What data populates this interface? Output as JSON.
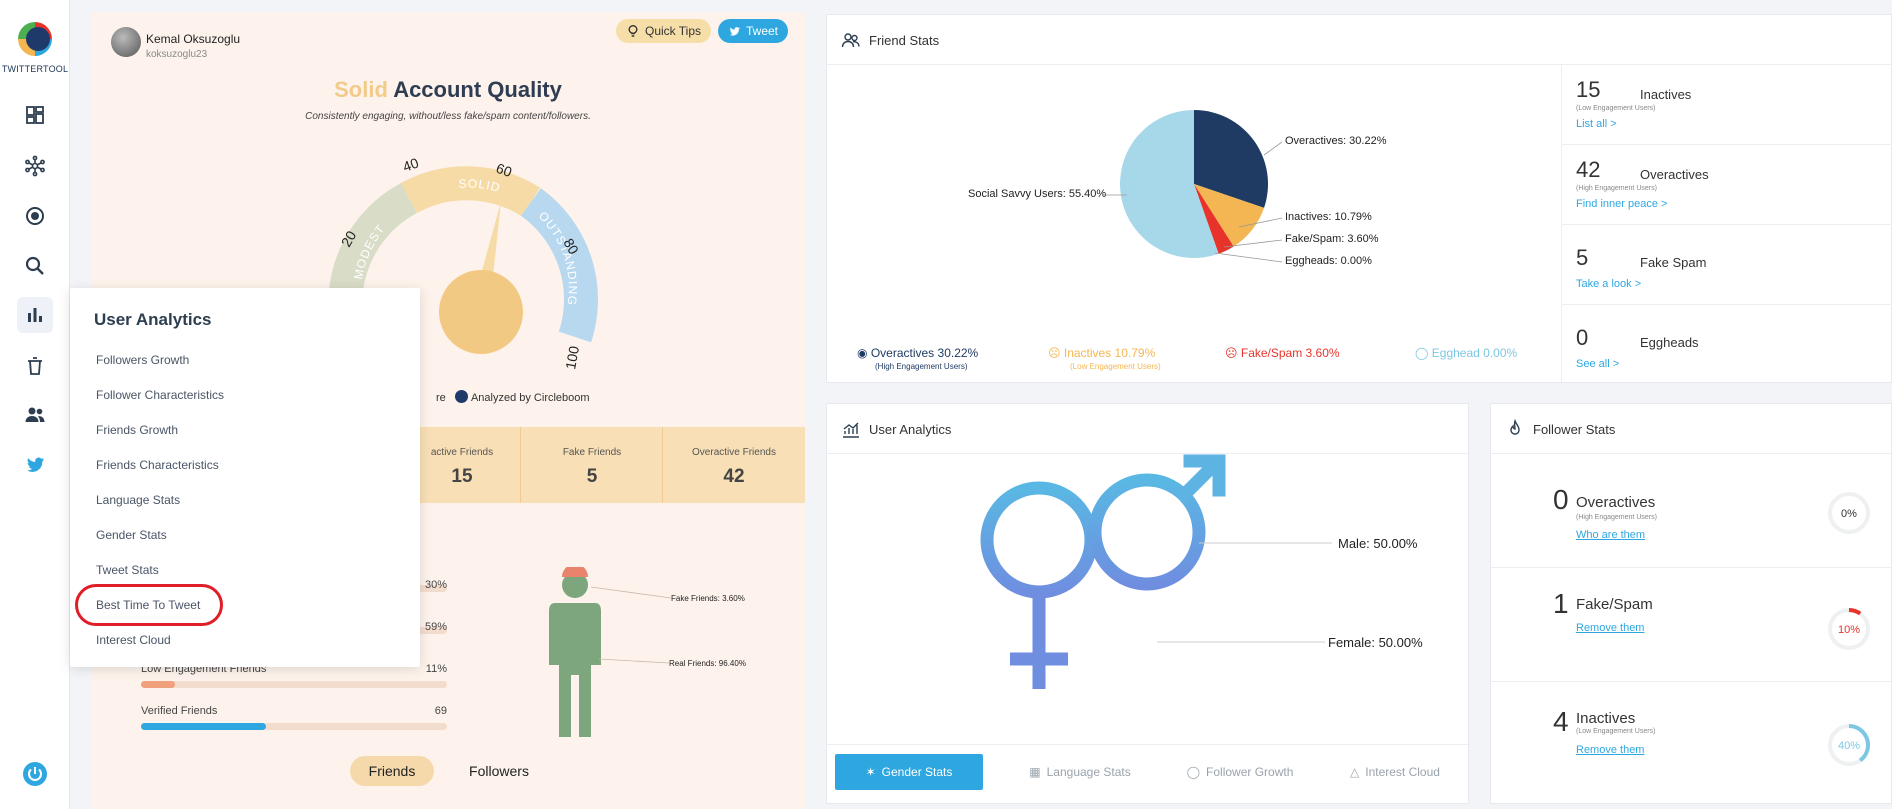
{
  "brand": {
    "name": "TWITTERTOOL"
  },
  "nav": {
    "icons": [
      "dashboard-icon",
      "network-icon",
      "target-icon",
      "search-icon",
      "bar-chart-icon",
      "trash-icon",
      "users-icon",
      "twitter-bird-icon"
    ],
    "power": "power-icon"
  },
  "profile": {
    "name": "Kemal Oksuzoglu",
    "handle": "koksuzoglu23"
  },
  "actions": {
    "quick_tips": "Quick Tips",
    "tweet": "Tweet"
  },
  "quality": {
    "level": "Solid",
    "title_rest": "Account Quality",
    "subtitle": "Consistently engaging, without/less fake/spam content/followers.",
    "score": "60",
    "gauge_ticks": [
      "20",
      "40",
      "60",
      "80",
      "100"
    ],
    "gauge_bands": [
      "MODEST",
      "SOLID",
      "OUTSTANDING"
    ],
    "analyzed_prefix": "re",
    "analyzed_by": "Analyzed by Circleboom"
  },
  "score_stats": [
    {
      "label": "active Friends",
      "value": "15"
    },
    {
      "label": "Fake Friends",
      "value": "5"
    },
    {
      "label": "Overactive Friends",
      "value": "42"
    }
  ],
  "bars": [
    {
      "label": "",
      "value": "30%",
      "fill": 0.3,
      "color": "#f4c77d"
    },
    {
      "label": "",
      "value": "59%",
      "fill": 0.59,
      "color": "#9dd3e8"
    },
    {
      "label": "Low Engagement Friends",
      "value": "11%",
      "fill": 0.11,
      "color": "#f0a07a"
    },
    {
      "label": "Verified Friends",
      "value": "69",
      "fill": 0.41,
      "color": "#2ea7e0"
    }
  ],
  "figure": {
    "fake": "Fake Friends: 3.60%",
    "real": "Real Friends: 96.40%"
  },
  "score_toggle": {
    "friends": "Friends",
    "followers": "Followers"
  },
  "menu": {
    "title": "User Analytics",
    "items": [
      "Followers Growth",
      "Follower Characteristics",
      "Friends Growth",
      "Friends Characteristics",
      "Language Stats",
      "Gender Stats",
      "Tweet Stats",
      "Best Time To Tweet",
      "Interest Cloud"
    ]
  },
  "friend_stats": {
    "title": "Friend Stats",
    "chart_data": {
      "type": "pie",
      "slices": [
        {
          "name": "Overactives",
          "value": 30.22,
          "color": "#1f3b63"
        },
        {
          "name": "Inactives",
          "value": 10.79,
          "color": "#f4b652"
        },
        {
          "name": "Fake/Spam",
          "value": 3.6,
          "color": "#e8332a"
        },
        {
          "name": "Eggheads",
          "value": 0.0,
          "color": "#9fd6e8"
        },
        {
          "name": "Social Savvy Users",
          "value": 55.4,
          "color": "#a6d8ea"
        }
      ],
      "labels": {
        "overactives": "Overactives: 30.22%",
        "inactives": "Inactives: 10.79%",
        "fake": "Fake/Spam: 3.60%",
        "eggheads": "Eggheads: 0.00%",
        "savvy": "Social Savvy Users: 55.40%"
      }
    },
    "legend": [
      {
        "label": "Overactives 30.22%",
        "sub": "(High Engagement Users)",
        "color": "#1f3b63"
      },
      {
        "label": "Inactives 10.79%",
        "sub": "(Low Engagement Users)",
        "color": "#f4b652"
      },
      {
        "label": "Fake/Spam 3.60%",
        "sub": "",
        "color": "#e8332a"
      },
      {
        "label": "Egghead 0.00%",
        "sub": "",
        "color": "#7cc7e3"
      }
    ],
    "side": [
      {
        "num": "15",
        "name": "Inactives",
        "sub": "(Low Engagement Users)",
        "link": "List all >"
      },
      {
        "num": "42",
        "name": "Overactives",
        "sub": "(High Engagement Users)",
        "link": "Find inner peace >"
      },
      {
        "num": "5",
        "name": "Fake Spam",
        "sub": "",
        "link": "Take a look >"
      },
      {
        "num": "0",
        "name": "Eggheads",
        "sub": "",
        "link": "See all >"
      }
    ]
  },
  "user_analytics": {
    "title": "User Analytics",
    "male": "Male: 50.00%",
    "female": "Female: 50.00%",
    "tabs": [
      "Gender Stats",
      "Language Stats",
      "Follower Growth",
      "Interest Cloud"
    ]
  },
  "follower_stats": {
    "title": "Follower Stats",
    "rows": [
      {
        "num": "0",
        "name": "Overactives",
        "sub": "(High Engagement Users)",
        "link": "Who are them",
        "pct": "0%",
        "fraction": 0.0,
        "color": "#cfd6dc"
      },
      {
        "num": "1",
        "name": "Fake/Spam",
        "sub": "",
        "link": "Remove them",
        "pct": "10%",
        "fraction": 0.1,
        "color": "#e8332a"
      },
      {
        "num": "4",
        "name": "Inactives",
        "sub": "(Low Engagement Users)",
        "link": "Remove them",
        "pct": "40%",
        "fraction": 0.4,
        "color": "#7cc7e3"
      }
    ]
  }
}
